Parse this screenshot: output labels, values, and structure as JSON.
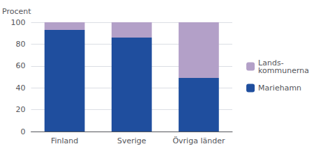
{
  "chart_data": {
    "type": "bar",
    "stacked": true,
    "ylabel": "Procent",
    "categories": [
      "Finland",
      "Sverige",
      "Övriga länder"
    ],
    "series": [
      {
        "name": "Mariehamn",
        "color": "#1f4e9e",
        "values": [
          93,
          86,
          49
        ]
      },
      {
        "name": "Lands-\nkommunerna",
        "color": "#b3a0c8",
        "values": [
          7,
          14,
          51
        ]
      }
    ],
    "ylim": [
      0,
      100
    ],
    "yticks": [
      0,
      20,
      40,
      60,
      80,
      100
    ],
    "grid": true,
    "legend": "right"
  }
}
